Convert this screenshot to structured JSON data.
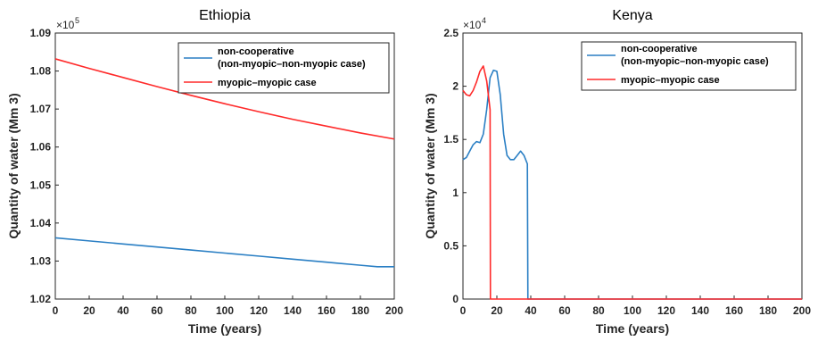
{
  "chart_data": [
    {
      "type": "line",
      "title": "Ethiopia",
      "xlabel": "Time (years)",
      "ylabel": "Quantity of water (Mm 3)",
      "y_multiplier": "×10^5",
      "xlim": [
        0,
        200
      ],
      "ylim": [
        1.02,
        1.09
      ],
      "xticks": [
        "0",
        "20",
        "40",
        "60",
        "80",
        "100",
        "120",
        "140",
        "160",
        "180",
        "200"
      ],
      "yticks": [
        "1.02",
        "1.03",
        "1.04",
        "1.05",
        "1.06",
        "1.07",
        "1.08",
        "1.09"
      ],
      "legend_position": "top-right",
      "legend_lines": [
        [
          "non-cooperative",
          "(non-myopic–non-myopic case)"
        ],
        [
          "myopic–myopic case"
        ]
      ],
      "series": [
        {
          "name": "non-cooperative (non-myopic–non-myopic case)",
          "color": "#2a7fc4",
          "points": [
            [
              0,
              1.0361
            ],
            [
              20,
              1.0353
            ],
            [
              40,
              1.0345
            ],
            [
              60,
              1.0337
            ],
            [
              80,
              1.0329
            ],
            [
              100,
              1.0321
            ],
            [
              120,
              1.0313
            ],
            [
              140,
              1.0305
            ],
            [
              160,
              1.0297
            ],
            [
              180,
              1.0289
            ],
            [
              190,
              1.0285
            ],
            [
              200,
              1.0285
            ]
          ]
        },
        {
          "name": "myopic–myopic case",
          "color": "#ff2a2a",
          "points": [
            [
              0,
              1.0832
            ],
            [
              20,
              1.0807
            ],
            [
              40,
              1.0783
            ],
            [
              60,
              1.0759
            ],
            [
              80,
              1.0736
            ],
            [
              100,
              1.0714
            ],
            [
              120,
              1.0693
            ],
            [
              140,
              1.0673
            ],
            [
              160,
              1.0655
            ],
            [
              180,
              1.0637
            ],
            [
              200,
              1.0621
            ]
          ]
        }
      ]
    },
    {
      "type": "line",
      "title": "Kenya",
      "xlabel": "Time (years)",
      "ylabel": "Quantity of water (Mm 3)",
      "y_multiplier": "×10^4",
      "xlim": [
        0,
        200
      ],
      "ylim": [
        0,
        2.5
      ],
      "xticks": [
        "0",
        "20",
        "40",
        "60",
        "80",
        "100",
        "120",
        "140",
        "160",
        "180",
        "200"
      ],
      "yticks": [
        "0",
        "0.5",
        "1",
        "1.5",
        "2",
        "2.5"
      ],
      "legend_position": "top-right",
      "legend_lines": [
        [
          "non-cooperative",
          "(non-myopic–non-myopic case)"
        ],
        [
          "myopic–myopic case"
        ]
      ],
      "series": [
        {
          "name": "non-cooperative (non-myopic–non-myopic case)",
          "color": "#2a7fc4",
          "points": [
            [
              0,
              1.31
            ],
            [
              2,
              1.33
            ],
            [
              4,
              1.39
            ],
            [
              6,
              1.45
            ],
            [
              8,
              1.48
            ],
            [
              10,
              1.47
            ],
            [
              12,
              1.55
            ],
            [
              14,
              1.78
            ],
            [
              16,
              2.08
            ],
            [
              18,
              2.15
            ],
            [
              20,
              2.14
            ],
            [
              22,
              1.92
            ],
            [
              24,
              1.55
            ],
            [
              26,
              1.35
            ],
            [
              28,
              1.31
            ],
            [
              30,
              1.31
            ],
            [
              32,
              1.35
            ],
            [
              34,
              1.39
            ],
            [
              36,
              1.35
            ],
            [
              38,
              1.27
            ],
            [
              38.3,
              0
            ],
            [
              200,
              0
            ]
          ]
        },
        {
          "name": "myopic–myopic case",
          "color": "#ff2a2a",
          "points": [
            [
              0,
              1.96
            ],
            [
              2,
              1.92
            ],
            [
              4,
              1.91
            ],
            [
              6,
              1.96
            ],
            [
              8,
              2.04
            ],
            [
              10,
              2.14
            ],
            [
              12,
              2.19
            ],
            [
              14,
              2.05
            ],
            [
              16,
              1.78
            ],
            [
              16.2,
              0
            ],
            [
              200,
              0
            ]
          ]
        }
      ]
    }
  ]
}
